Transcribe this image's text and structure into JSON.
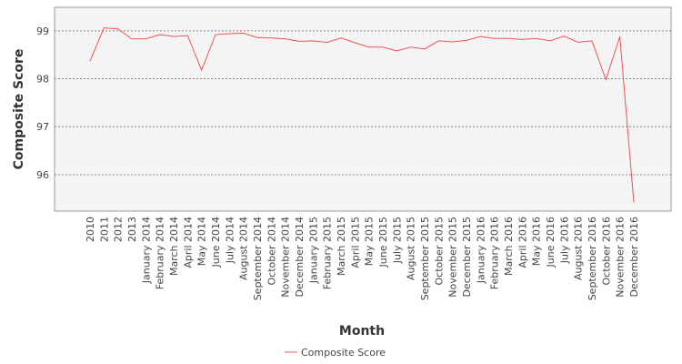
{
  "chart_data": {
    "type": "line",
    "x_label": "Month",
    "y_label": "Composite Score",
    "categories": [
      "2010",
      "2011",
      "2012",
      "2013",
      "January 2014",
      "February 2014",
      "March 2014",
      "April 2014",
      "May 2014",
      "June 2014",
      "July 2014",
      "August 2014",
      "September 2014",
      "October 2014",
      "November 2014",
      "December 2014",
      "January 2015",
      "February 2015",
      "March 2015",
      "April 2015",
      "May 2015",
      "June 2015",
      "July 2015",
      "August 2015",
      "September 2015",
      "October 2015",
      "November 2015",
      "December 2015",
      "January 2016",
      "February 2016",
      "March 2016",
      "April 2016",
      "May 2016",
      "June 2016",
      "July 2016",
      "August 2016",
      "September 2016",
      "October 2016",
      "November 2016",
      "December 2016"
    ],
    "series": [
      {
        "name": "Composite Score",
        "color": "#f25353",
        "values": [
          98.37,
          99.06,
          99.04,
          98.83,
          98.83,
          98.92,
          98.88,
          98.9,
          98.18,
          98.92,
          98.94,
          98.95,
          98.86,
          98.85,
          98.83,
          98.78,
          98.79,
          98.76,
          98.85,
          98.75,
          98.66,
          98.66,
          98.58,
          98.66,
          98.62,
          98.79,
          98.77,
          98.8,
          98.88,
          98.84,
          98.84,
          98.82,
          98.84,
          98.79,
          98.89,
          98.76,
          98.79,
          97.98,
          98.88,
          95.42
        ]
      }
    ],
    "ylim": [
      95.24,
      99.49
    ],
    "yticks": [
      96,
      97,
      98,
      99
    ],
    "grid": true
  }
}
